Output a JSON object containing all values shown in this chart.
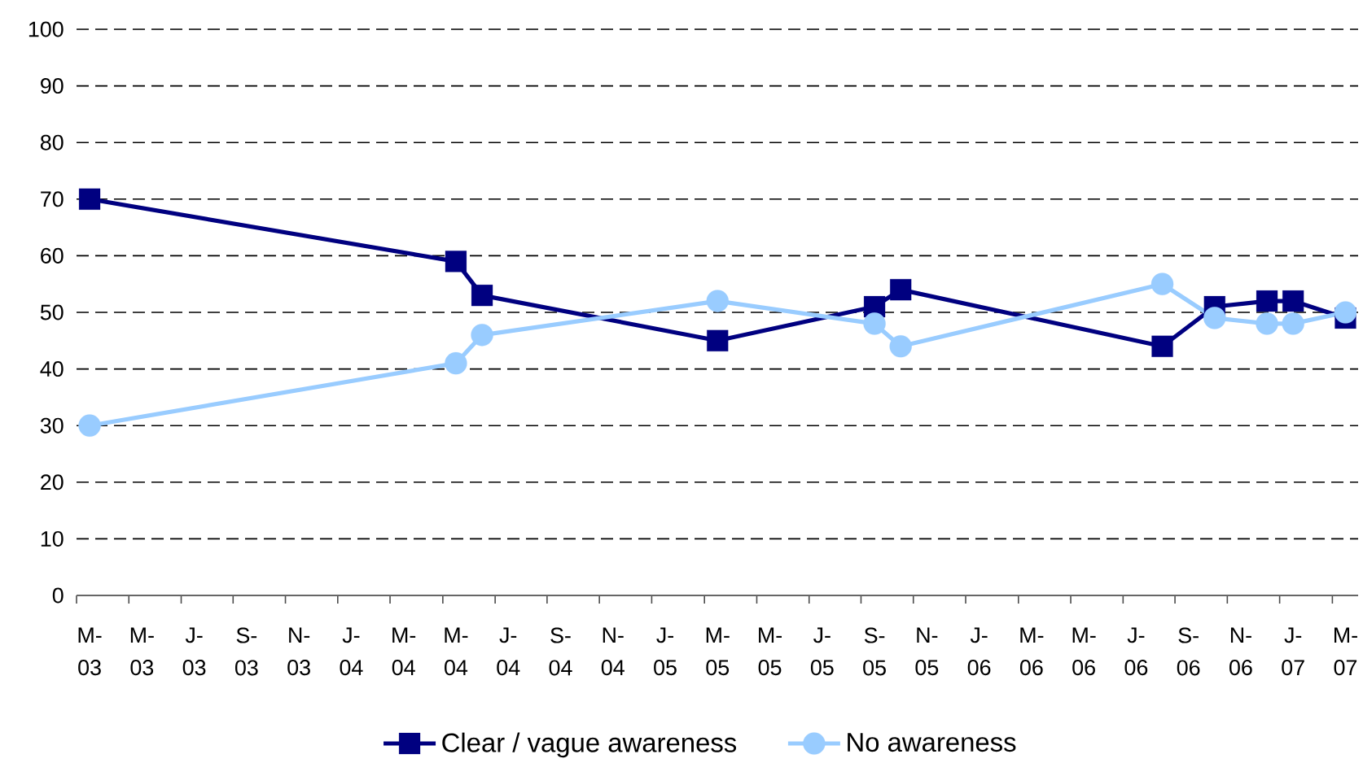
{
  "chart_data": {
    "type": "line",
    "x": [
      "2003-03",
      "2004-05",
      "2004-06",
      "2005-03",
      "2005-09",
      "2005-10",
      "2006-08",
      "2006-10",
      "2006-12",
      "2007-01",
      "2007-03"
    ],
    "series": [
      {
        "name": "Clear / vague awareness",
        "color": "#000080",
        "marker": "square",
        "values": [
          70,
          59,
          53,
          45,
          51,
          54,
          44,
          51,
          52,
          52,
          49
        ]
      },
      {
        "name": "No awareness",
        "color": "#99ccff",
        "marker": "circle",
        "values": [
          30,
          41,
          46,
          52,
          48,
          44,
          55,
          49,
          48,
          48,
          50
        ]
      }
    ],
    "xlim": [
      "2003-02-15",
      "2007-03-16"
    ],
    "xticks": [
      {
        "value": "2003-02-15",
        "label": null
      },
      {
        "value": "2003-03",
        "label": "M-03"
      },
      {
        "value": "2003-04-16",
        "label": null
      },
      {
        "value": "2003-05",
        "label": "M-03"
      },
      {
        "value": "2003-06-16",
        "label": null
      },
      {
        "value": "2003-07",
        "label": "J-03"
      },
      {
        "value": "2003-08-16",
        "label": null
      },
      {
        "value": "2003-09",
        "label": "S-03"
      },
      {
        "value": "2003-10-16",
        "label": null
      },
      {
        "value": "2003-11",
        "label": "N-03"
      },
      {
        "value": "2003-12-16",
        "label": null
      },
      {
        "value": "2004-01",
        "label": "J-04"
      },
      {
        "value": "2004-02-15",
        "label": null
      },
      {
        "value": "2004-03",
        "label": "M-04"
      },
      {
        "value": "2004-04-16",
        "label": null
      },
      {
        "value": "2004-05",
        "label": "M-04"
      },
      {
        "value": "2004-06-16",
        "label": null
      },
      {
        "value": "2004-07",
        "label": "J-04"
      },
      {
        "value": "2004-08-16",
        "label": null
      },
      {
        "value": "2004-09",
        "label": "S-04"
      },
      {
        "value": "2004-10-16",
        "label": null
      },
      {
        "value": "2004-11",
        "label": "N-04"
      },
      {
        "value": "2004-12-16",
        "label": null
      },
      {
        "value": "2005-01",
        "label": "J-05"
      },
      {
        "value": "2005-02-15",
        "label": null
      },
      {
        "value": "2005-03",
        "label": "M-05"
      },
      {
        "value": "2005-04-16",
        "label": null
      },
      {
        "value": "2005-05",
        "label": "M-05"
      },
      {
        "value": "2005-06-16",
        "label": null
      },
      {
        "value": "2005-07",
        "label": "J-05"
      },
      {
        "value": "2005-08-16",
        "label": null
      },
      {
        "value": "2005-09",
        "label": "S-05"
      },
      {
        "value": "2005-10-16",
        "label": null
      },
      {
        "value": "2005-11",
        "label": "N-05"
      },
      {
        "value": "2005-12-16",
        "label": null
      },
      {
        "value": "2006-01",
        "label": "J-06"
      },
      {
        "value": "2006-02-15",
        "label": null
      },
      {
        "value": "2006-03",
        "label": "M-06"
      },
      {
        "value": "2006-04-16",
        "label": null
      },
      {
        "value": "2006-05",
        "label": "M-06"
      },
      {
        "value": "2006-06-16",
        "label": null
      },
      {
        "value": "2006-07",
        "label": "J-06"
      },
      {
        "value": "2006-08-16",
        "label": null
      },
      {
        "value": "2006-09",
        "label": "S-06"
      },
      {
        "value": "2006-10-16",
        "label": null
      },
      {
        "value": "2006-11",
        "label": "N-06"
      },
      {
        "value": "2006-12-16",
        "label": null
      },
      {
        "value": "2007-01",
        "label": "J-07"
      },
      {
        "value": "2007-02-15",
        "label": null
      },
      {
        "value": "2007-03",
        "label": "M-07"
      }
    ],
    "ylim": [
      0,
      100
    ],
    "yticks": [
      0,
      10,
      20,
      30,
      40,
      50,
      60,
      70,
      80,
      90,
      100
    ],
    "grid": "y",
    "legend": "bottom"
  }
}
